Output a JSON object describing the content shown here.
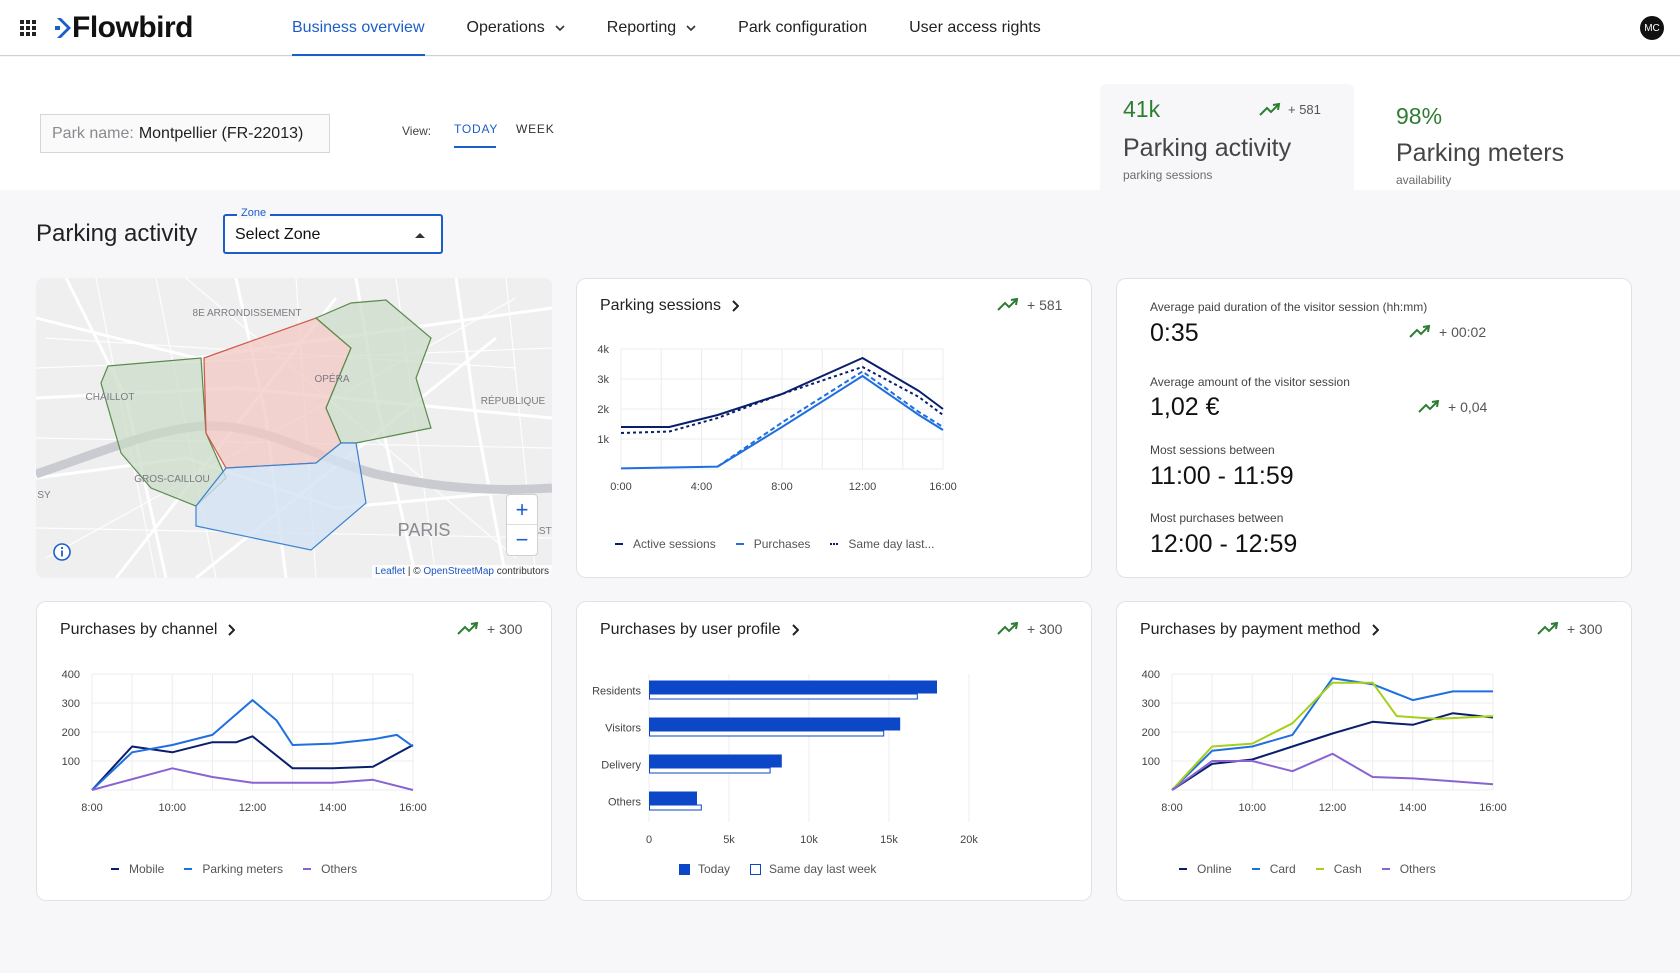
{
  "app": {
    "brand": "Flowbird",
    "avatar_initials": "MC"
  },
  "nav": {
    "items": [
      {
        "label": "Business overview",
        "active": true
      },
      {
        "label": "Operations",
        "dropdown": true
      },
      {
        "label": "Reporting",
        "dropdown": true
      },
      {
        "label": "Park configuration"
      },
      {
        "label": "User access rights"
      }
    ]
  },
  "park": {
    "label": "Park name:",
    "value": "Montpellier (FR-22013)"
  },
  "view": {
    "label": "View:",
    "tabs": [
      "TODAY",
      "WEEK"
    ],
    "active": "TODAY"
  },
  "kpis": [
    {
      "value": "41k",
      "title": "Parking activity",
      "subtitle": "parking sessions",
      "trend": "+ 581"
    },
    {
      "value": "98%",
      "title": "Parking meters",
      "subtitle": "availability"
    }
  ],
  "section": {
    "title": "Parking activity"
  },
  "zone": {
    "label": "Zone",
    "value": "Select Zone"
  },
  "map": {
    "labels": [
      "8E ARRONDISSEMENT",
      "OPÉRA",
      "CHAILLOT",
      "RÉPUBLIQUE",
      "GROS-CAILLOU",
      "PARIS",
      "SY",
      "AST"
    ],
    "zoom_in": "+",
    "zoom_out": "−",
    "attribution_link1": "Leaflet",
    "attribution_sep": " | © ",
    "attribution_link2": "OpenStreetMap",
    "attribution_tail": " contributors"
  },
  "cards": {
    "sessions": {
      "title": "Parking sessions",
      "trend": "+ 581"
    },
    "channel": {
      "title": "Purchases by channel",
      "trend": "+ 300"
    },
    "profile": {
      "title": "Purchases by user profile",
      "trend": "+ 300"
    },
    "payment": {
      "title": "Purchases by payment method",
      "trend": "+ 300"
    }
  },
  "stats": [
    {
      "label": "Average paid duration of the visitor session (hh:mm)",
      "value": "0:35",
      "trend": "+ 00:02"
    },
    {
      "label": "Average amount of the visitor session",
      "value": "1,02 €",
      "trend": "+ 0,04"
    },
    {
      "label": "Most sessions between",
      "value": "11:00 - 11:59"
    },
    {
      "label": "Most purchases between",
      "value": "12:00 - 12:59"
    }
  ],
  "colors": {
    "accent": "#1c5ec9",
    "navy": "#0a1f6b",
    "blue": "#1e6fe0",
    "purple": "#8a63d2",
    "lime": "#a6cf1a",
    "trend_green": "#2e7d32",
    "bar": "#0b47c7"
  },
  "chart_data": [
    {
      "type": "line",
      "id": "parking-sessions",
      "x": [
        "0:00",
        "4:00",
        "8:00",
        "12:00",
        "16:00"
      ],
      "ylim": [
        0,
        4000
      ],
      "yticks": [
        "1k",
        "2k",
        "3k",
        "4k"
      ],
      "series": [
        {
          "name": "Active sessions",
          "style": "solid",
          "color": "#0a1f6b",
          "points": [
            [
              0,
              1400
            ],
            [
              3,
              1400
            ],
            [
              6,
              1800
            ],
            [
              10,
              2500
            ],
            [
              15,
              3700
            ],
            [
              18.5,
              2600
            ],
            [
              20,
              2000
            ]
          ]
        },
        {
          "name": "Purchases",
          "style": "solid",
          "color": "#1e6fe0",
          "points": [
            [
              0,
              20
            ],
            [
              6,
              80
            ],
            [
              10,
              1400
            ],
            [
              15,
              3100
            ],
            [
              18.5,
              1800
            ],
            [
              20,
              1300
            ]
          ]
        },
        {
          "name": "Same day last...",
          "style": "dotted",
          "color": "#0a1f6b",
          "points": [
            [
              0,
              1200
            ],
            [
              3,
              1250
            ],
            [
              6,
              1700
            ],
            [
              10,
              2500
            ],
            [
              15,
              3400
            ],
            [
              18.5,
              2400
            ],
            [
              20,
              1800
            ]
          ]
        },
        {
          "name": "",
          "style": "dashed",
          "color": "#1e6fe0",
          "points": [
            [
              6,
              80
            ],
            [
              10,
              1550
            ],
            [
              15,
              3250
            ],
            [
              18.5,
              1900
            ],
            [
              20,
              1400
            ]
          ]
        }
      ]
    },
    {
      "type": "line",
      "id": "purchases-by-channel",
      "x": [
        "8:00",
        "10:00",
        "12:00",
        "14:00",
        "16:00"
      ],
      "ylim": [
        0,
        400
      ],
      "yticks": [
        "100",
        "200",
        "300",
        "400"
      ],
      "series": [
        {
          "name": "Mobile",
          "color": "#0a1f6b",
          "points": [
            [
              8,
              0
            ],
            [
              9,
              150
            ],
            [
              10,
              130
            ],
            [
              11,
              165
            ],
            [
              11.6,
              165
            ],
            [
              12,
              185
            ],
            [
              13,
              75
            ],
            [
              14,
              75
            ],
            [
              15,
              80
            ],
            [
              16,
              155
            ]
          ]
        },
        {
          "name": "Parking meters",
          "color": "#1e6fe0",
          "points": [
            [
              8,
              0
            ],
            [
              9,
              130
            ],
            [
              10,
              155
            ],
            [
              11,
              190
            ],
            [
              12,
              310
            ],
            [
              12.6,
              240
            ],
            [
              13,
              155
            ],
            [
              14,
              160
            ],
            [
              15,
              175
            ],
            [
              15.6,
              190
            ],
            [
              16,
              150
            ]
          ]
        },
        {
          "name": "Others",
          "color": "#8a63d2",
          "points": [
            [
              8,
              0
            ],
            [
              10,
              75
            ],
            [
              11,
              45
            ],
            [
              12,
              25
            ],
            [
              12.6,
              25
            ],
            [
              14,
              25
            ],
            [
              15,
              35
            ],
            [
              16,
              0
            ]
          ]
        }
      ]
    },
    {
      "type": "bar",
      "id": "purchases-by-user-profile",
      "orientation": "horizontal",
      "categories": [
        "Residents",
        "Visitors",
        "Delivery",
        "Others"
      ],
      "xticks": [
        "0",
        "5k",
        "10k",
        "15k",
        "20k"
      ],
      "xlim": [
        0,
        20000
      ],
      "series": [
        {
          "name": "Today",
          "values": [
            18000,
            15700,
            8300,
            3000
          ]
        },
        {
          "name": "Same day last week",
          "values": [
            16800,
            14700,
            7600,
            3300
          ]
        }
      ]
    },
    {
      "type": "line",
      "id": "purchases-by-payment-method",
      "x": [
        "8:00",
        "10:00",
        "12:00",
        "14:00",
        "16:00"
      ],
      "ylim": [
        0,
        400
      ],
      "yticks": [
        "100",
        "200",
        "300",
        "400"
      ],
      "series": [
        {
          "name": "Online",
          "color": "#0a1f6b",
          "points": [
            [
              8,
              0
            ],
            [
              9,
              90
            ],
            [
              10,
              105
            ],
            [
              11,
              150
            ],
            [
              12,
              195
            ],
            [
              13,
              235
            ],
            [
              14,
              225
            ],
            [
              15,
              265
            ],
            [
              16,
              250
            ]
          ]
        },
        {
          "name": "Card",
          "color": "#1e6fe0",
          "points": [
            [
              8,
              0
            ],
            [
              9,
              135
            ],
            [
              10,
              150
            ],
            [
              11,
              190
            ],
            [
              12,
              385
            ],
            [
              13,
              365
            ],
            [
              14,
              310
            ],
            [
              15,
              340
            ],
            [
              16,
              340
            ]
          ]
        },
        {
          "name": "Cash",
          "color": "#a6cf1a",
          "points": [
            [
              8,
              0
            ],
            [
              9,
              150
            ],
            [
              10,
              160
            ],
            [
              11,
              230
            ],
            [
              12,
              370
            ],
            [
              13,
              370
            ],
            [
              13.6,
              255
            ],
            [
              14.6,
              245
            ],
            [
              16,
              255
            ]
          ]
        },
        {
          "name": "Others",
          "color": "#8a63d2",
          "points": [
            [
              8,
              0
            ],
            [
              9,
              100
            ],
            [
              10,
              100
            ],
            [
              11,
              65
            ],
            [
              12,
              125
            ],
            [
              13,
              45
            ],
            [
              14,
              40
            ],
            [
              15,
              30
            ],
            [
              16,
              20
            ]
          ]
        }
      ]
    }
  ]
}
